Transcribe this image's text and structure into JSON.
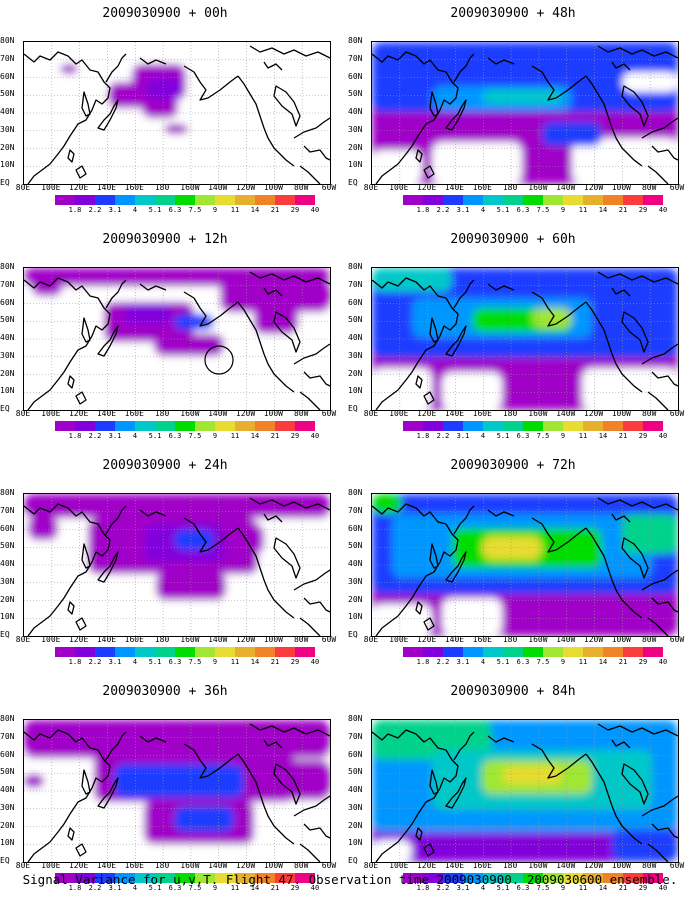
{
  "panels": [
    {
      "title": "2009030900 + 00h"
    },
    {
      "title": "2009030900 + 12h"
    },
    {
      "title": "2009030900 + 24h"
    },
    {
      "title": "2009030900 + 36h"
    },
    {
      "title": "2009030900 + 48h"
    },
    {
      "title": "2009030900 + 60h"
    },
    {
      "title": "2009030900 + 72h"
    },
    {
      "title": "2009030900 + 84h"
    }
  ],
  "lat_labels": [
    "80N",
    "70N",
    "60N",
    "50N",
    "40N",
    "30N",
    "20N",
    "10N",
    "EQ"
  ],
  "lon_labels": [
    "80E",
    "100E",
    "120E",
    "140E",
    "160E",
    "180",
    "160W",
    "140W",
    "120W",
    "100W",
    "80W",
    "60W"
  ],
  "colorbar": {
    "labels": [
      "1.8",
      "2.2",
      "3.1",
      "4",
      "5.1",
      "6.3",
      "7.5",
      "9",
      "11",
      "14",
      "21",
      "29",
      "40"
    ],
    "colors": [
      "#a000c8",
      "#8200dc",
      "#1e3cff",
      "#0096ff",
      "#00c8c8",
      "#00d28c",
      "#00dc00",
      "#a0e632",
      "#e6dc32",
      "#e6af2d",
      "#f08228",
      "#fa3c3c",
      "#f00082"
    ]
  },
  "caption": "Signal Variance for u,v,T. Flight 47. Observation time 2009030900. 2009030600 ensemble."
}
